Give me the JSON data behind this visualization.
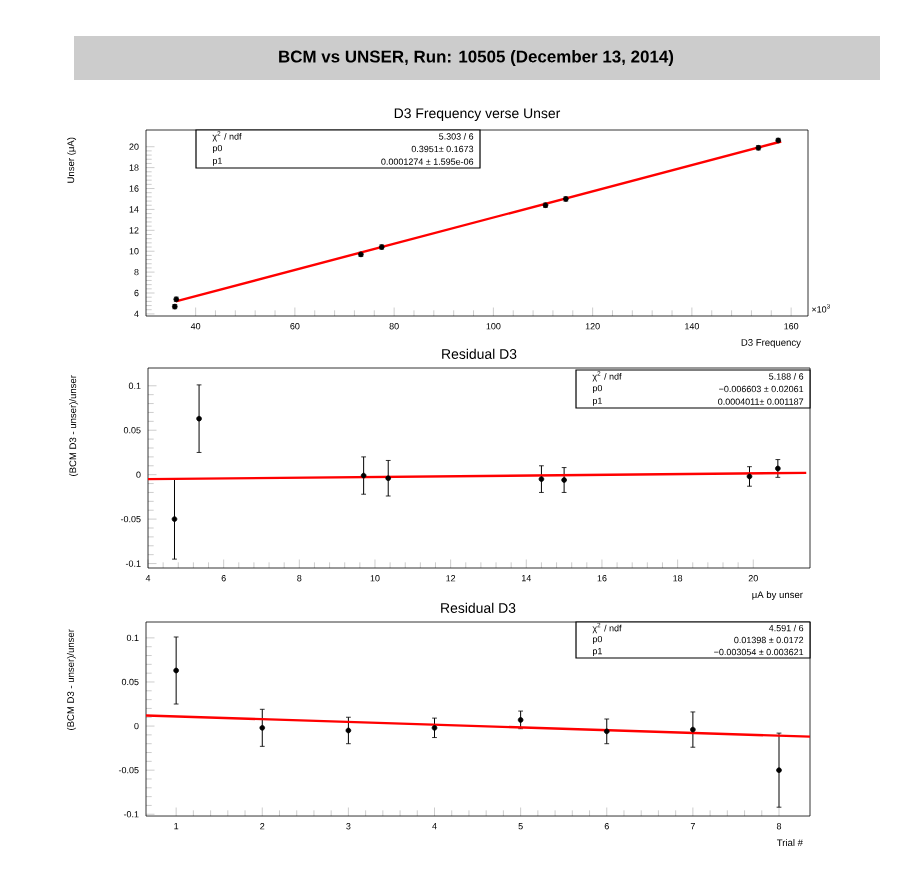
{
  "chart_data": [
    {
      "type": "scatter",
      "title": "BCM vs UNSER, Run: 10505 (December 13, 2014)",
      "subtitle": "D3 Frequency verse Unser",
      "xlabel": "D3 Frequency",
      "ylabel": "Unser (μA)",
      "xlim": [
        30,
        163.4
      ],
      "ylim": [
        3.8,
        21.6
      ],
      "xticks": [
        40,
        60,
        80,
        100,
        120,
        140,
        160
      ],
      "yticks": [
        4,
        6,
        8,
        10,
        12,
        14,
        16,
        18,
        20
      ],
      "grid": false,
      "annotations": [
        "χ$^{2}$ / ndf",
        "5.303 / 6",
        "p0",
        "0.3951± 0.1673",
        "p1",
        "0.0001274 ± 1.595e-06",
        "×10$^{3}$"
      ],
      "series": [
        {
          "marker": "circle",
          "color": "#000000",
          "x": [
            35.8,
            36.1,
            73.3,
            77.5,
            110.5,
            114.6,
            153.4,
            157.4
          ],
          "values": [
            4.7,
            5.4,
            9.7,
            10.4,
            14.4,
            15.0,
            19.9,
            20.6
          ],
          "errors": [
            0.2,
            0.2,
            0.2,
            0.2,
            0.2,
            0.2,
            0.2,
            0.2
          ]
        },
        {
          "type": "line",
          "marker": "none",
          "color": "#ff0000",
          "x": [
            36,
            158
          ],
          "values": [
            5.2,
            20.5
          ]
        }
      ]
    },
    {
      "type": "scatter",
      "title": "Residual D3",
      "xlabel": "μA by unser",
      "ylabel": "(BCM D3 - unser)/unser",
      "xlim": [
        4,
        21.5
      ],
      "ylim": [
        -0.105,
        0.12
      ],
      "xticks": [
        4,
        6,
        8,
        10,
        12,
        14,
        16,
        18,
        20
      ],
      "yticks": [
        -0.1,
        -0.05,
        0,
        0.05,
        0.1
      ],
      "grid": false,
      "annotations": [
        "χ$^{2}$ / ndf",
        "5.188 / 6",
        "p0",
        "−0.006603 ± 0.02061",
        "p1",
        "0.0004011± 0.001187"
      ],
      "series": [
        {
          "marker": "circle",
          "color": "#000000",
          "x": [
            4.7,
            5.35,
            9.7,
            10.35,
            14.4,
            15.0,
            19.9,
            20.65
          ],
          "values": [
            -0.05,
            0.063,
            -0.001,
            -0.004,
            -0.005,
            -0.006,
            -0.002,
            0.007
          ],
          "errors": [
            0.045,
            0.038,
            0.021,
            0.02,
            0.015,
            0.014,
            0.011,
            0.01
          ]
        },
        {
          "type": "line",
          "marker": "none",
          "color": "#ff0000",
          "x": [
            4,
            21.4
          ],
          "values": [
            -0.005,
            0.002
          ]
        }
      ]
    },
    {
      "type": "scatter",
      "title": "Residual D3",
      "xlabel": "Trial #",
      "ylabel": "(BCM D3 - unser)/unser",
      "xlim": [
        0.65,
        8.36
      ],
      "ylim": [
        -0.102,
        0.118
      ],
      "xticks": [
        1,
        2,
        3,
        4,
        5,
        6,
        7,
        8
      ],
      "yticks": [
        -0.1,
        -0.05,
        0,
        0.05,
        0.1
      ],
      "grid": false,
      "annotations": [
        "χ$^{2}$ / ndf",
        "4.591 / 6",
        "p0",
        "0.01398 ± 0.0172",
        "p1",
        "−0.003054 ± 0.003621"
      ],
      "series": [
        {
          "marker": "circle",
          "color": "#000000",
          "x": [
            1,
            2,
            3,
            4,
            5,
            6,
            7,
            8
          ],
          "values": [
            0.063,
            -0.002,
            -0.005,
            -0.002,
            0.007,
            -0.006,
            -0.004,
            -0.05
          ],
          "errors": [
            0.038,
            0.021,
            0.015,
            0.011,
            0.01,
            0.014,
            0.02,
            0.042
          ]
        },
        {
          "type": "line",
          "marker": "none",
          "color": "#ff0000",
          "x": [
            0.65,
            8.36
          ],
          "values": [
            0.012,
            -0.012
          ]
        }
      ]
    }
  ]
}
